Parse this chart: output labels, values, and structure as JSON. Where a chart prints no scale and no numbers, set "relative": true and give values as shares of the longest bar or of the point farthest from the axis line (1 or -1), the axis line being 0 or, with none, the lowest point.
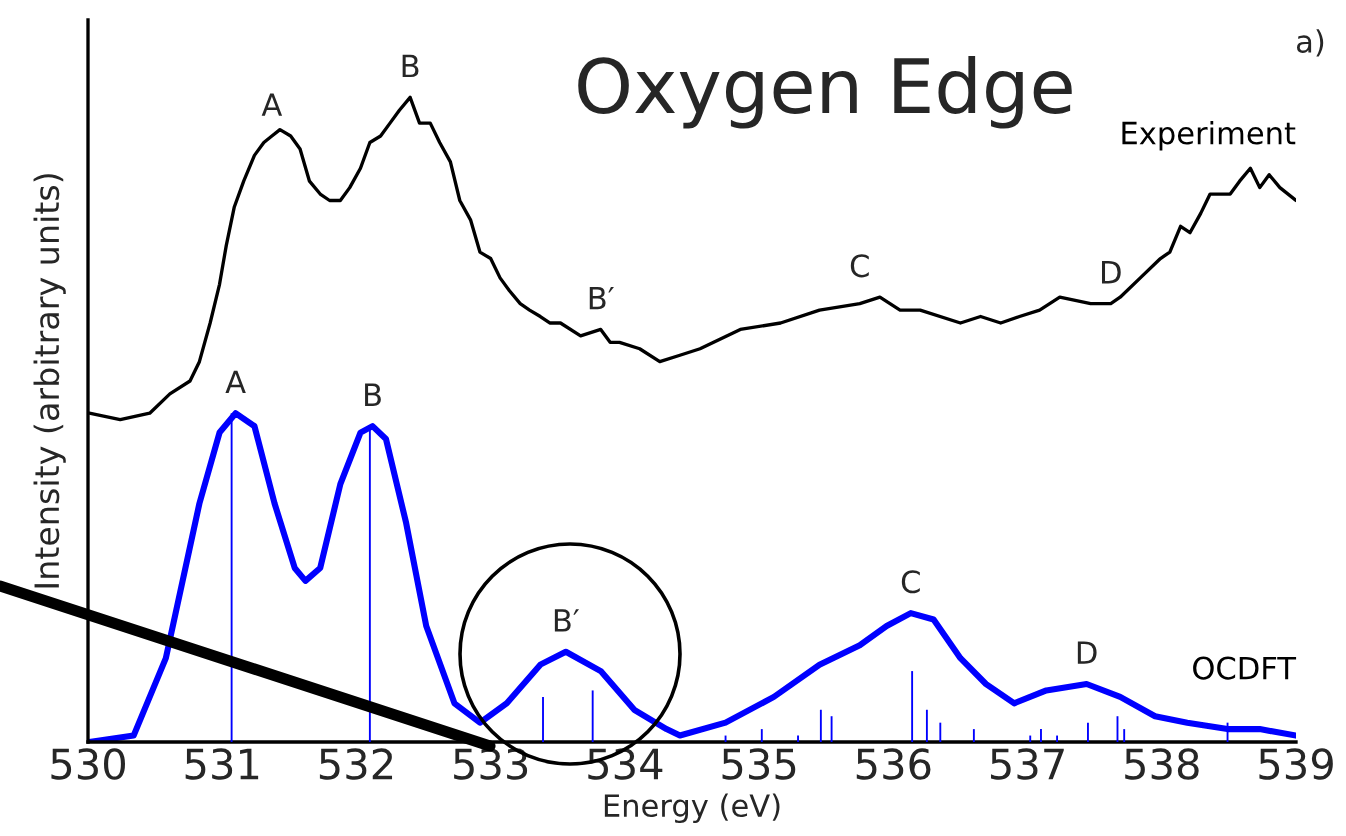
{
  "chart_data": {
    "type": "line",
    "title": "Oxygen Edge",
    "xlabel": "Energy (eV)",
    "ylabel": "Intensity (arbitrary units)",
    "relative": true,
    "xlim": [
      530,
      539
    ],
    "xticks": [
      530,
      531,
      532,
      533,
      534,
      535,
      536,
      537,
      538,
      539
    ],
    "grid": false,
    "legend": false,
    "series": [
      {
        "name": "Experiment",
        "color": "#000000",
        "x": [
          530.01,
          530.24,
          530.46,
          530.61,
          530.76,
          530.83,
          530.91,
          530.98,
          531.03,
          531.09,
          531.16,
          531.24,
          531.31,
          531.37,
          531.43,
          531.51,
          531.58,
          531.65,
          531.73,
          531.8,
          531.88,
          531.95,
          532.03,
          532.1,
          532.18,
          532.25,
          532.32,
          532.4,
          532.47,
          532.55,
          532.62,
          532.7,
          532.77,
          532.85,
          532.92,
          533.0,
          533.07,
          533.14,
          533.22,
          533.29,
          533.37,
          533.44,
          533.52,
          533.67,
          533.82,
          533.89,
          533.96,
          534.11,
          534.26,
          534.41,
          534.56,
          534.86,
          535.16,
          535.45,
          535.75,
          535.9,
          536.05,
          536.2,
          536.5,
          536.65,
          536.8,
          536.94,
          537.09,
          537.24,
          537.47,
          537.62,
          537.69,
          537.84,
          537.99,
          538.06,
          538.14,
          538.21,
          538.29,
          538.36,
          538.51,
          538.58,
          538.66,
          538.73,
          538.8,
          538.88,
          539.0
        ],
        "values": [
          0.51,
          0.5,
          0.51,
          0.54,
          0.56,
          0.59,
          0.65,
          0.71,
          0.77,
          0.83,
          0.87,
          0.91,
          0.93,
          0.94,
          0.95,
          0.94,
          0.92,
          0.87,
          0.85,
          0.84,
          0.84,
          0.86,
          0.89,
          0.93,
          0.94,
          0.96,
          0.98,
          1.0,
          0.96,
          0.96,
          0.93,
          0.9,
          0.84,
          0.81,
          0.76,
          0.75,
          0.72,
          0.7,
          0.68,
          0.67,
          0.66,
          0.65,
          0.65,
          0.63,
          0.64,
          0.62,
          0.62,
          0.61,
          0.59,
          0.6,
          0.61,
          0.64,
          0.65,
          0.67,
          0.68,
          0.69,
          0.67,
          0.67,
          0.65,
          0.66,
          0.65,
          0.66,
          0.67,
          0.69,
          0.68,
          0.68,
          0.69,
          0.72,
          0.75,
          0.76,
          0.8,
          0.79,
          0.82,
          0.85,
          0.85,
          0.87,
          0.89,
          0.86,
          0.88,
          0.86,
          0.84
        ]
      },
      {
        "name": "OCDFT",
        "color": "#0000ff",
        "x": [
          530.01,
          530.34,
          530.58,
          530.83,
          530.98,
          531.1,
          531.24,
          531.39,
          531.54,
          531.62,
          531.73,
          531.88,
          532.03,
          532.12,
          532.22,
          532.37,
          532.52,
          532.73,
          532.92,
          533.12,
          533.37,
          533.56,
          533.82,
          534.07,
          534.31,
          534.41,
          534.75,
          535.11,
          535.45,
          535.75,
          535.95,
          536.13,
          536.3,
          536.5,
          536.69,
          536.9,
          537.14,
          537.44,
          537.69,
          537.95,
          538.19,
          538.49,
          538.73,
          539.0
        ],
        "values": [
          0.0,
          0.01,
          0.13,
          0.37,
          0.48,
          0.51,
          0.49,
          0.37,
          0.27,
          0.25,
          0.27,
          0.4,
          0.48,
          0.49,
          0.47,
          0.34,
          0.18,
          0.06,
          0.03,
          0.06,
          0.12,
          0.14,
          0.11,
          0.05,
          0.02,
          0.01,
          0.03,
          0.07,
          0.12,
          0.15,
          0.18,
          0.2,
          0.19,
          0.13,
          0.09,
          0.06,
          0.08,
          0.09,
          0.07,
          0.04,
          0.03,
          0.02,
          0.02,
          0.01
        ]
      },
      {
        "type": "bar",
        "color": "#0000ff",
        "x": [
          531.07,
          532.1,
          533.39,
          533.76,
          534.75,
          535.02,
          535.29,
          535.46,
          535.54,
          536.14,
          536.25,
          536.35,
          536.6,
          537.02,
          537.1,
          537.22,
          537.45,
          537.67,
          537.72,
          538.49
        ],
        "values": [
          0.51,
          0.49,
          0.07,
          0.08,
          0.01,
          0.02,
          0.01,
          0.05,
          0.04,
          0.11,
          0.05,
          0.03,
          0.02,
          0.01,
          0.02,
          0.01,
          0.03,
          0.04,
          0.02,
          0.03
        ]
      }
    ],
    "annotations": [
      {
        "text": "A",
        "x": 531.37,
        "y": 0.94
      },
      {
        "text": "B",
        "x": 532.4,
        "y": 1.0
      },
      {
        "text": "B′",
        "x": 533.82,
        "y": 0.64
      },
      {
        "text": "C",
        "x": 535.75,
        "y": 0.69
      },
      {
        "text": "D",
        "x": 537.62,
        "y": 0.68
      },
      {
        "text": "A",
        "x": 531.1,
        "y": 0.51
      },
      {
        "text": "B",
        "x": 532.12,
        "y": 0.49
      },
      {
        "text": "B′",
        "x": 533.56,
        "y": 0.14
      },
      {
        "text": "C",
        "x": 536.13,
        "y": 0.2
      },
      {
        "text": "D",
        "x": 537.44,
        "y": 0.09
      },
      "a)"
    ]
  }
}
